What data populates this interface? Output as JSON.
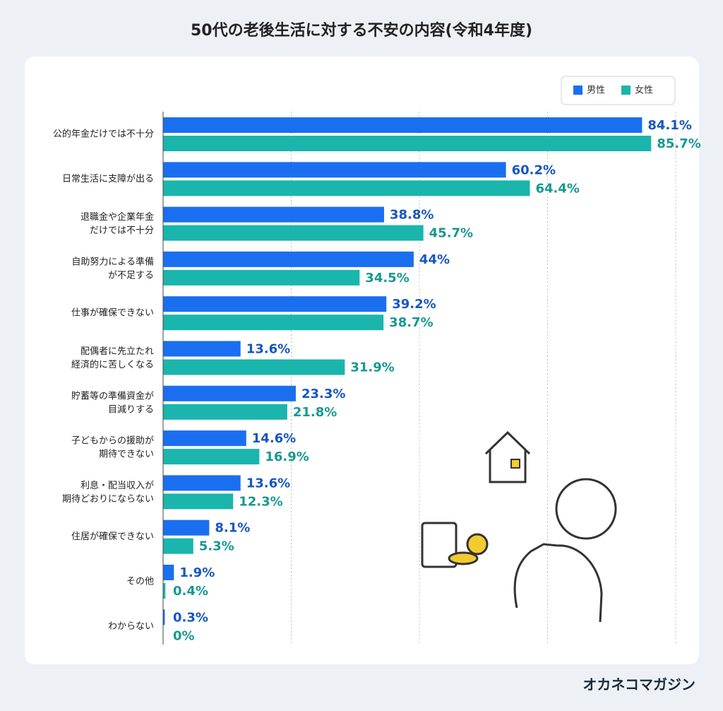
{
  "chart_data": {
    "type": "barh",
    "title": "50代の老後生活に対する不安の内容(令和4年度)",
    "categories": [
      "公的年金だけでは不十分",
      "日常生活に支障が出る",
      "退職金や企業年金\nだけでは不十分",
      "自助努力による準備\nが不足する",
      "仕事が確保できない",
      "配偶者に先立たれ\n経済的に苦しくなる",
      "貯蓄等の準備資金が\n目減りする",
      "子どもからの援助が\n期待できない",
      "利息・配当収入が\n期待どおりにならない",
      "住居が確保できない",
      "その他",
      "わからない"
    ],
    "series": [
      {
        "name": "男性",
        "color": "#1a6ff0",
        "label_color": "#1656c2",
        "values": [
          84.1,
          60.2,
          38.8,
          44,
          39.2,
          13.6,
          23.3,
          14.6,
          13.6,
          8.1,
          1.9,
          0.3
        ],
        "value_labels": [
          "84.1%",
          "60.2%",
          "38.8%",
          "44%",
          "39.2%",
          "13.6%",
          "23.3%",
          "14.6%",
          "13.6%",
          "8.1%",
          "1.9%",
          "0.3%"
        ]
      },
      {
        "name": "女性",
        "color": "#1ab5ad",
        "label_color": "#179890",
        "values": [
          85.7,
          64.4,
          45.7,
          34.5,
          38.7,
          31.9,
          21.8,
          16.9,
          12.3,
          5.3,
          0.4,
          0
        ],
        "value_labels": [
          "85.7%",
          "64.4%",
          "45.7%",
          "34.5%",
          "38.7%",
          "31.9%",
          "21.8%",
          "16.9%",
          "12.3%",
          "5.3%",
          "0.4%",
          "0%"
        ]
      }
    ],
    "xlim": [
      0,
      90
    ],
    "legend": "top-right",
    "brand": "オカネコマガジン"
  }
}
